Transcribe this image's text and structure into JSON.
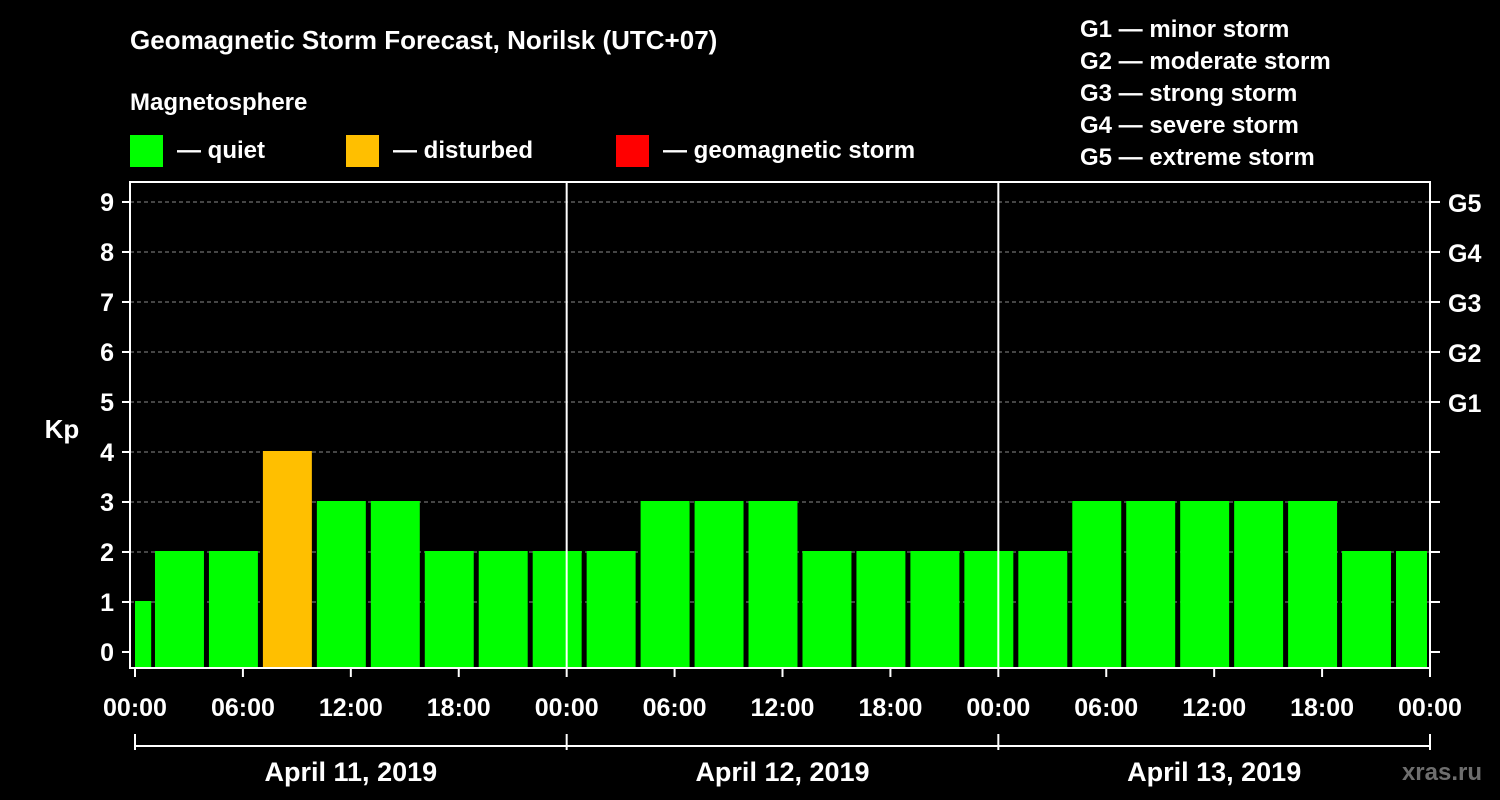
{
  "chart_data": {
    "type": "bar",
    "title": "Geomagnetic Storm Forecast, Norilsk (UTC+07)",
    "subtitle": "Magnetosphere",
    "ylabel": "Kp",
    "ylim": [
      0,
      9
    ],
    "y_ticks": [
      "0",
      "1",
      "2",
      "3",
      "4",
      "5",
      "6",
      "7",
      "8",
      "9"
    ],
    "right_ticks": [
      {
        "kp": 5,
        "label": "G1"
      },
      {
        "kp": 6,
        "label": "G2"
      },
      {
        "kp": 7,
        "label": "G3"
      },
      {
        "kp": 8,
        "label": "G4"
      },
      {
        "kp": 9,
        "label": "G5"
      }
    ],
    "grid": true,
    "legend": [
      {
        "label": "— quiet",
        "color": "#00ff00"
      },
      {
        "label": "— disturbed",
        "color": "#ffbf00"
      },
      {
        "label": "— geomagnetic storm",
        "color": "#ff0000"
      }
    ],
    "storm_scale": [
      "G1 — minor storm",
      "G2 — moderate storm",
      "G3 — strong storm",
      "G4 — severe storm",
      "G5 — extreme storm"
    ],
    "x_tick_labels": [
      "00:00",
      "06:00",
      "12:00",
      "18:00",
      "00:00",
      "06:00",
      "12:00",
      "18:00",
      "00:00",
      "06:00",
      "12:00",
      "18:00",
      "00:00"
    ],
    "days": [
      "April 11, 2019",
      "April 12, 2019",
      "April 13, 2019"
    ],
    "interval_hours": 3,
    "values": [
      1,
      2,
      2,
      4,
      3,
      3,
      2,
      2,
      2,
      2,
      3,
      3,
      3,
      2,
      2,
      2,
      2,
      2,
      3,
      3,
      3,
      3,
      3,
      2,
      2
    ],
    "first_interval_partial": true,
    "colors": {
      "quiet": "#00ff00",
      "disturbed": "#ffbf00",
      "storm": "#ff0000"
    }
  },
  "watermark": "xras.ru"
}
